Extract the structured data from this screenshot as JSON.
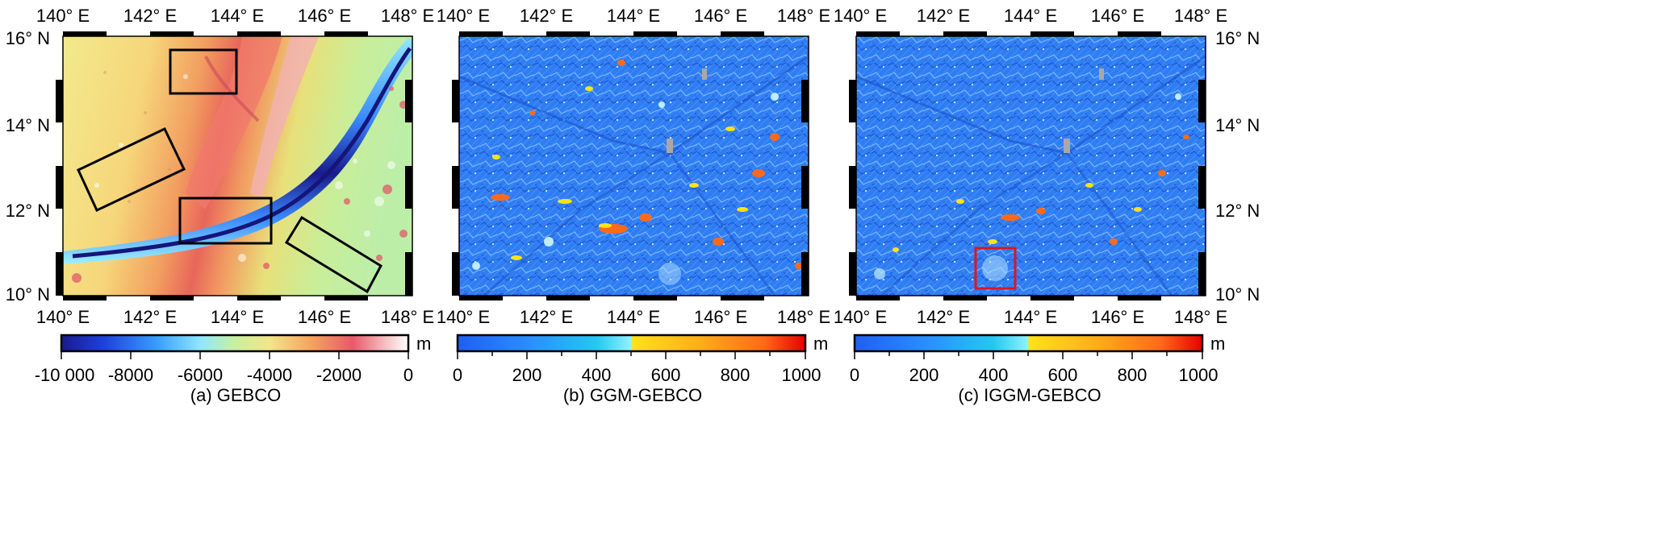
{
  "panels": [
    {
      "caption": "(a) GEBCO",
      "lon_labels": [
        "140° E",
        "142° E",
        "144° E",
        "146° E",
        "148° E"
      ],
      "lat_labels": [
        "16° N",
        "14° N",
        "12° N",
        "10° N"
      ],
      "lat_side": "left",
      "colorbar": {
        "unit": "m",
        "tick_labels": [
          "-10 000",
          "-8000",
          "-6000",
          "-4000",
          "-2000",
          "0"
        ],
        "colors": [
          "#1a1a8c",
          "#1f3fd9",
          "#3aa0ff",
          "#8fe6ff",
          "#c8f0a0",
          "#f3e58a",
          "#f4a45e",
          "#e85a6a",
          "#f5c6c8",
          "#ffffff"
        ]
      },
      "boxes_color": "#000000"
    },
    {
      "caption": "(b) GGM-GEBCO",
      "lon_labels": [
        "140° E",
        "142° E",
        "144° E",
        "146° E",
        "148° E"
      ],
      "lat_labels": [],
      "lat_side": "none",
      "colorbar": {
        "unit": "m",
        "tick_labels": [
          "0",
          "200",
          "400",
          "600",
          "800",
          "1000"
        ],
        "colors": [
          "#1f5ff0",
          "#2a8cff",
          "#27c7f0",
          "#8ff3ff",
          "#ffe21a",
          "#ffac1a",
          "#ff6a1a",
          "#e60000"
        ]
      }
    },
    {
      "caption": "(c) IGGM-GEBCO",
      "lon_labels": [
        "140° E",
        "142° E",
        "144° E",
        "146° E",
        "148° E"
      ],
      "lat_labels": [
        "16° N",
        "14° N",
        "12° N",
        "10° N"
      ],
      "lat_side": "right",
      "colorbar": {
        "unit": "m",
        "tick_labels": [
          "0",
          "200",
          "400",
          "600",
          "800",
          "1000"
        ],
        "colors": [
          "#1f5ff0",
          "#2a8cff",
          "#27c7f0",
          "#8ff3ff",
          "#ffe21a",
          "#ffac1a",
          "#ff6a1a",
          "#e60000"
        ]
      },
      "boxes_color": "#e0151b"
    }
  ]
}
